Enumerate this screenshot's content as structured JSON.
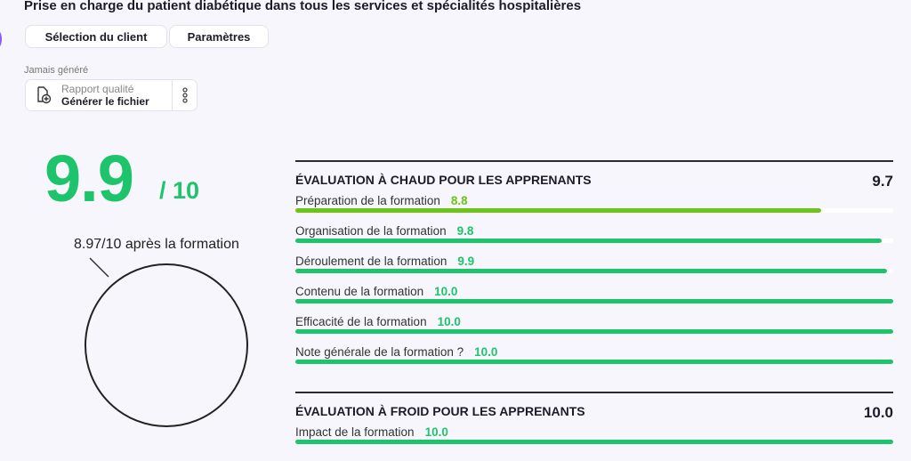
{
  "header": {
    "title": "Prise en charge du patient diabétique dans tous les services et spécialités hospitalières",
    "buttons": [
      "Sélection du client",
      "Paramètres"
    ]
  },
  "report": {
    "status": "Jamais généré",
    "label": "Rapport qualité",
    "action": "Générer le fichier",
    "icon": "file-add-icon",
    "menu_icon": "more-vertical-icon"
  },
  "score": {
    "value": "9.9",
    "out_of": "/ 10",
    "after": "8.97/10 après la formation",
    "color": "#1ec46b"
  },
  "sections": [
    {
      "title": "ÉVALUATION À CHAUD POUR LES APPRENANTS",
      "score": "9.7",
      "items": [
        {
          "label": "Préparation de la formation",
          "value": "8.8",
          "color": "#6cc417"
        },
        {
          "label": "Organisation de la formation",
          "value": "9.8",
          "color": "#1ec46b"
        },
        {
          "label": "Déroulement de la formation",
          "value": "9.9",
          "color": "#1ec46b"
        },
        {
          "label": "Contenu de la formation",
          "value": "10.0",
          "color": "#1ec46b"
        },
        {
          "label": "Efficacité de la formation",
          "value": "10.0",
          "color": "#1ec46b"
        },
        {
          "label": "Note générale de la formation ?",
          "value": "10.0",
          "color": "#1ec46b"
        }
      ]
    },
    {
      "title": "ÉVALUATION À FROID POUR LES APPRENANTS",
      "score": "10.0",
      "items": [
        {
          "label": "Impact de la formation",
          "value": "10.0",
          "color": "#1ec46b"
        }
      ]
    }
  ]
}
